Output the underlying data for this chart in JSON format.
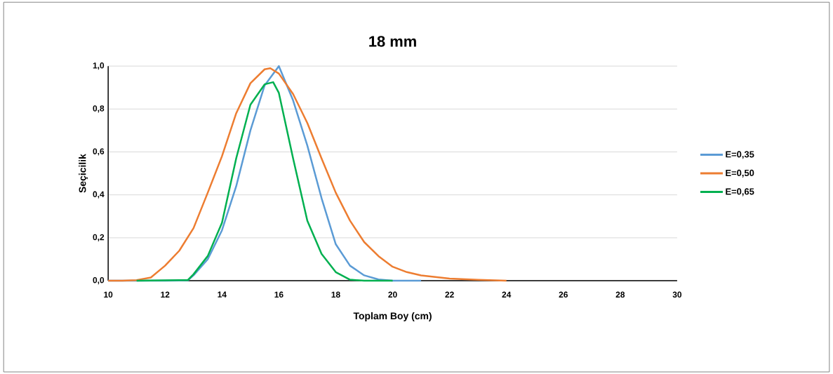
{
  "chart_data": {
    "type": "line",
    "title": "18 mm",
    "xlabel": "Toplam Boy (cm)",
    "ylabel": "Seçicilik",
    "xlim": [
      10,
      30
    ],
    "xticks": [
      10,
      12,
      14,
      16,
      18,
      20,
      22,
      24,
      26,
      28,
      30
    ],
    "ylim": [
      0,
      1
    ],
    "yticks": [
      {
        "value": 0,
        "label": "0,0"
      },
      {
        "value": 0.2,
        "label": "0,2"
      },
      {
        "value": 0.4,
        "label": "0,4"
      },
      {
        "value": 0.6,
        "label": "0,6"
      },
      {
        "value": 0.8,
        "label": "0,8"
      },
      {
        "value": 1,
        "label": "1,0"
      }
    ],
    "grid": "y",
    "legend": "right",
    "marker": "none",
    "line_style": "solid",
    "series": [
      {
        "name": "E=0,35",
        "color": "#5b9bd5",
        "x": [
          10,
          11,
          12,
          12.8,
          13,
          13.5,
          14,
          14.5,
          15,
          15.5,
          16,
          16.5,
          17,
          17.5,
          18,
          18.5,
          19,
          19.5,
          20,
          21
        ],
        "values": [
          0,
          0,
          0,
          0.002,
          0.025,
          0.1,
          0.235,
          0.44,
          0.7,
          0.91,
          1.0,
          0.84,
          0.63,
          0.385,
          0.17,
          0.07,
          0.025,
          0.006,
          0,
          0
        ]
      },
      {
        "name": "E=0,50",
        "color": "#ed7d31",
        "x": [
          10,
          10.5,
          11,
          11.5,
          12,
          12.5,
          13,
          13.5,
          14,
          14.5,
          15,
          15.5,
          15.7,
          16,
          16.5,
          17,
          17.5,
          18,
          18.5,
          19,
          19.5,
          20,
          20.5,
          21,
          22,
          23,
          24
        ],
        "values": [
          0,
          0,
          0.003,
          0.015,
          0.07,
          0.14,
          0.245,
          0.41,
          0.58,
          0.78,
          0.92,
          0.985,
          0.99,
          0.965,
          0.87,
          0.735,
          0.57,
          0.41,
          0.28,
          0.18,
          0.115,
          0.065,
          0.04,
          0.025,
          0.01,
          0.004,
          0
        ]
      },
      {
        "name": "E=0,65",
        "color": "#00b050",
        "x": [
          11,
          12,
          12.8,
          13,
          13.5,
          14,
          14.5,
          15,
          15.5,
          15.8,
          16,
          16.5,
          17,
          17.5,
          18,
          18.5,
          19,
          20
        ],
        "values": [
          0,
          0.002,
          0.003,
          0.03,
          0.115,
          0.27,
          0.57,
          0.82,
          0.915,
          0.925,
          0.875,
          0.57,
          0.28,
          0.125,
          0.04,
          0.005,
          0,
          0
        ]
      }
    ]
  }
}
